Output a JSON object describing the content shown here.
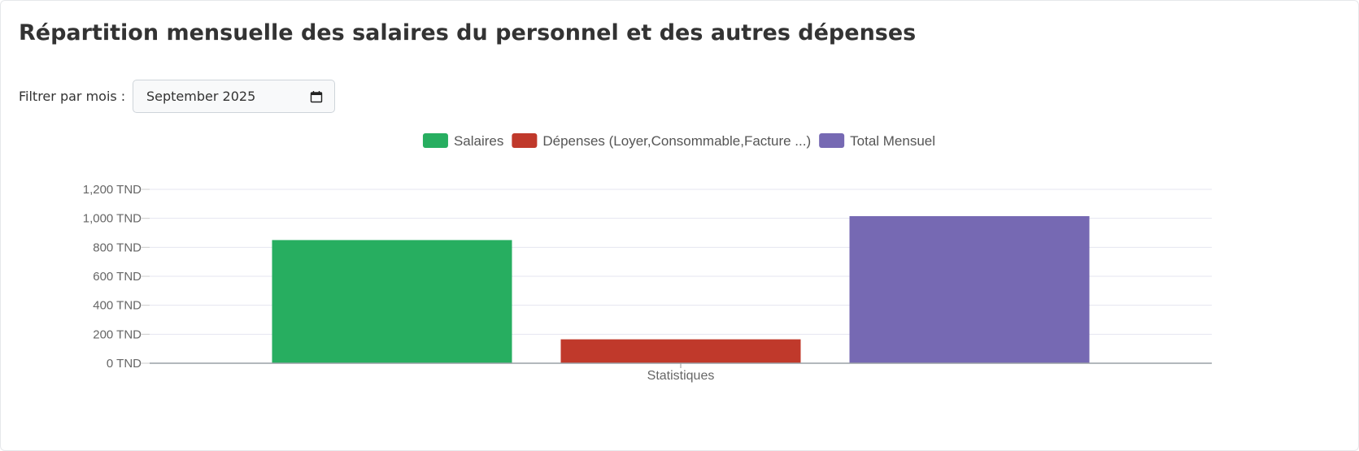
{
  "page": {
    "title": "Répartition mensuelle des salaires du personnel et des autres dépenses",
    "filter_label": "Filtrer par mois :",
    "month_value": "September 2025"
  },
  "chart_data": {
    "type": "bar",
    "categories": [
      "Statistiques"
    ],
    "series": [
      {
        "name": "Salaires",
        "values": [
          850
        ],
        "color": "#27ae60"
      },
      {
        "name": "Dépenses (Loyer,Consommable,Facture ...)",
        "values": [
          165
        ],
        "color": "#c0392b"
      },
      {
        "name": "Total Mensuel",
        "values": [
          1015
        ],
        "color": "#7669b3"
      }
    ],
    "ylim": [
      0,
      1200
    ],
    "yticks": [
      0,
      200,
      400,
      600,
      800,
      1000,
      1200
    ],
    "ytick_labels": [
      "0 TND",
      "200 TND",
      "400 TND",
      "600 TND",
      "800 TND",
      "1,000 TND",
      "1,200 TND"
    ],
    "xlabel": "Statistiques",
    "legend_position": "top"
  }
}
